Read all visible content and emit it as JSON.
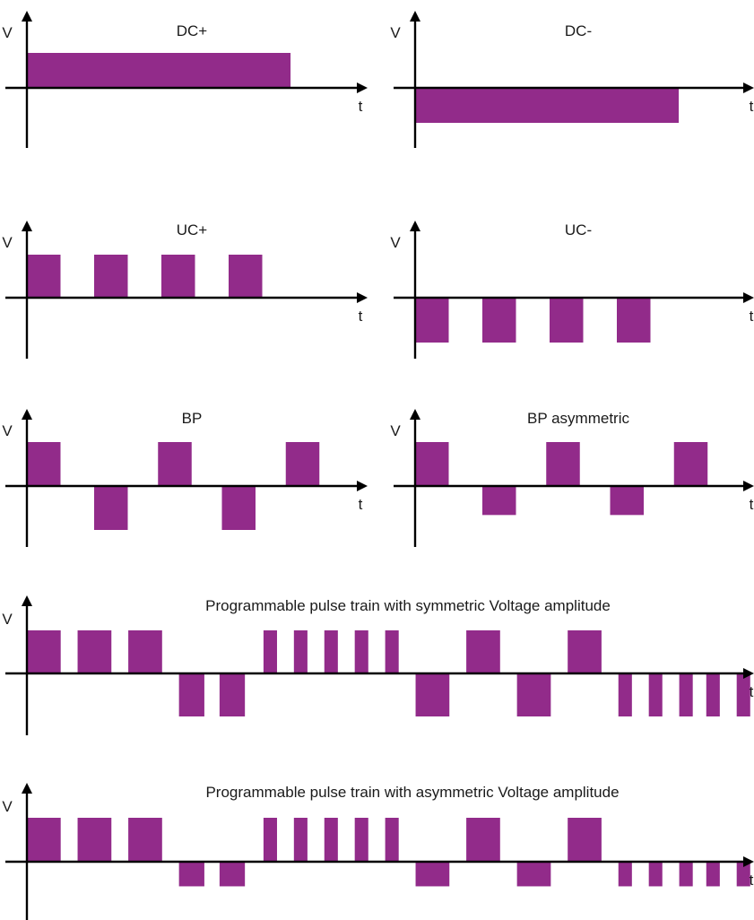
{
  "style": {
    "pulse_color": "#922b8a",
    "axis_color": "#000000"
  },
  "panels": [
    {
      "title": "DC+",
      "ylabel": "V",
      "xlabel": "t",
      "pulses": [
        {
          "start": 0,
          "end": 7.8,
          "level": 1
        }
      ]
    },
    {
      "title": "DC-",
      "ylabel": "V",
      "xlabel": "t",
      "pulses": [
        {
          "start": 0,
          "end": 7.8,
          "level": -1
        }
      ]
    },
    {
      "title": "UC+",
      "ylabel": "V",
      "xlabel": "t",
      "pulses": [
        {
          "start": 0,
          "end": 1,
          "level": 1
        },
        {
          "start": 2,
          "end": 3,
          "level": 1
        },
        {
          "start": 4,
          "end": 5,
          "level": 1
        },
        {
          "start": 6,
          "end": 7,
          "level": 1
        }
      ]
    },
    {
      "title": "UC-",
      "ylabel": "V",
      "xlabel": "t",
      "pulses": [
        {
          "start": 0,
          "end": 1,
          "level": -1
        },
        {
          "start": 2,
          "end": 3,
          "level": -1
        },
        {
          "start": 4,
          "end": 5,
          "level": -1
        },
        {
          "start": 6,
          "end": 7,
          "level": -1
        }
      ]
    },
    {
      "title": "BP",
      "ylabel": "V",
      "xlabel": "t",
      "pulses": [
        {
          "start": 0,
          "end": 1,
          "level": 1
        },
        {
          "start": 2,
          "end": 3,
          "level": -1
        },
        {
          "start": 3.9,
          "end": 4.9,
          "level": 1
        },
        {
          "start": 5.8,
          "end": 6.8,
          "level": -1
        },
        {
          "start": 7.7,
          "end": 8.7,
          "level": 1
        }
      ]
    },
    {
      "title": "BP asymmetric",
      "ylabel": "V",
      "xlabel": "t",
      "pulses": [
        {
          "start": 0,
          "end": 1,
          "level": 1
        },
        {
          "start": 2,
          "end": 3,
          "level": -0.66
        },
        {
          "start": 3.9,
          "end": 4.9,
          "level": 1
        },
        {
          "start": 5.8,
          "end": 6.8,
          "level": -0.66
        },
        {
          "start": 7.7,
          "end": 8.7,
          "level": 1
        }
      ]
    },
    {
      "title": "Programmable pulse train with symmetric Voltage amplitude",
      "ylabel": "V",
      "xlabel": "t",
      "pulses": [
        {
          "start": 0,
          "end": 1,
          "level": 1
        },
        {
          "start": 1.5,
          "end": 2.5,
          "level": 1
        },
        {
          "start": 3,
          "end": 4,
          "level": 1
        },
        {
          "start": 4.5,
          "end": 5.25,
          "level": -1
        },
        {
          "start": 5.7,
          "end": 6.45,
          "level": -1
        },
        {
          "start": 7,
          "end": 7.4,
          "level": 1
        },
        {
          "start": 7.9,
          "end": 8.3,
          "level": 1
        },
        {
          "start": 8.8,
          "end": 9.2,
          "level": 1
        },
        {
          "start": 9.7,
          "end": 10.1,
          "level": 1
        },
        {
          "start": 10.6,
          "end": 11,
          "level": 1
        },
        {
          "start": 11.5,
          "end": 12.5,
          "level": -1
        },
        {
          "start": 13,
          "end": 14,
          "level": 1
        },
        {
          "start": 14.5,
          "end": 15.5,
          "level": -1
        },
        {
          "start": 16,
          "end": 17,
          "level": 1
        },
        {
          "start": 17.5,
          "end": 17.9,
          "level": -1
        },
        {
          "start": 18.4,
          "end": 18.8,
          "level": -1
        },
        {
          "start": 19.3,
          "end": 19.7,
          "level": -1
        },
        {
          "start": 20.1,
          "end": 20.5,
          "level": -1
        },
        {
          "start": 21,
          "end": 21.4,
          "level": -1
        }
      ]
    },
    {
      "title": "Programmable pulse train with asymmetric Voltage amplitude",
      "ylabel": "V",
      "xlabel": "t",
      "pulses": [
        {
          "start": 0,
          "end": 1,
          "level": 1
        },
        {
          "start": 1.5,
          "end": 2.5,
          "level": 1
        },
        {
          "start": 3,
          "end": 4,
          "level": 1
        },
        {
          "start": 4.5,
          "end": 5.25,
          "level": -0.56
        },
        {
          "start": 5.7,
          "end": 6.45,
          "level": -0.56
        },
        {
          "start": 7,
          "end": 7.4,
          "level": 1
        },
        {
          "start": 7.9,
          "end": 8.3,
          "level": 1
        },
        {
          "start": 8.8,
          "end": 9.2,
          "level": 1
        },
        {
          "start": 9.7,
          "end": 10.1,
          "level": 1
        },
        {
          "start": 10.6,
          "end": 11,
          "level": 1
        },
        {
          "start": 11.5,
          "end": 12.5,
          "level": -0.56
        },
        {
          "start": 13,
          "end": 14,
          "level": 1
        },
        {
          "start": 14.5,
          "end": 15.5,
          "level": -0.56
        },
        {
          "start": 16,
          "end": 17,
          "level": 1
        },
        {
          "start": 17.5,
          "end": 17.9,
          "level": -0.56
        },
        {
          "start": 18.4,
          "end": 18.8,
          "level": -0.56
        },
        {
          "start": 19.3,
          "end": 19.7,
          "level": -0.56
        },
        {
          "start": 20.1,
          "end": 20.5,
          "level": -0.56
        },
        {
          "start": 21,
          "end": 21.4,
          "level": -0.56
        }
      ]
    }
  ]
}
